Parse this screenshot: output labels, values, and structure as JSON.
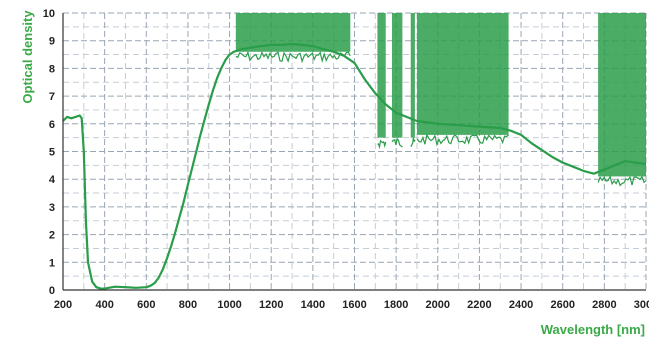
{
  "chart_data": {
    "type": "line",
    "xlabel": "Wavelength [nm]",
    "ylabel": "Optical density",
    "xlim": [
      200,
      3000
    ],
    "ylim": [
      0,
      10
    ],
    "x_ticks": [
      200,
      400,
      600,
      800,
      1000,
      1200,
      1400,
      1600,
      1800,
      2000,
      2200,
      2400,
      2600,
      2800,
      3000
    ],
    "x_tick_labels": [
      "200",
      "400",
      "600",
      "800",
      "1000",
      "1200",
      "1400",
      "1600",
      "1800",
      "2000",
      "2200",
      "2400",
      "2600",
      "2800",
      "3000"
    ],
    "y_ticks": [
      0,
      1,
      2,
      3,
      4,
      5,
      6,
      7,
      8,
      9,
      10
    ],
    "y_tick_labels": [
      "0",
      "1",
      "2",
      "3",
      "4",
      "5",
      "6",
      "7",
      "8",
      "9",
      "10"
    ],
    "grid": true,
    "colors": {
      "series": "#2a9d4a",
      "axis_title": "#3aaa48",
      "grid_major": "#9aa6b4",
      "grid_minor": "#c5cdd6",
      "tick_text": "#222222"
    },
    "series": [
      {
        "x": [
          200,
          220,
          240,
          260,
          280,
          290,
          300,
          310,
          320,
          340,
          360,
          380,
          400,
          450,
          500,
          550,
          600,
          620,
          640,
          660,
          680,
          700,
          720,
          740,
          760,
          780,
          800,
          820,
          840,
          860,
          880,
          900,
          920,
          940,
          960,
          980,
          1000,
          1020,
          1040,
          1060,
          1080,
          1100,
          1150,
          1200,
          1250,
          1300,
          1350,
          1400,
          1450,
          1500,
          1550,
          1600,
          1650,
          1700,
          1750,
          1800,
          1850,
          1900,
          1950,
          2000,
          2100,
          2200,
          2300,
          2350,
          2400,
          2450,
          2500,
          2550,
          2600,
          2650,
          2700,
          2750,
          2800,
          2850,
          2900,
          2950,
          3000
        ],
        "y": [
          6.1,
          6.25,
          6.2,
          6.25,
          6.3,
          6.2,
          5.0,
          2.5,
          1.0,
          0.3,
          0.1,
          0.05,
          0.05,
          0.12,
          0.1,
          0.08,
          0.1,
          0.15,
          0.25,
          0.45,
          0.75,
          1.15,
          1.6,
          2.1,
          2.65,
          3.2,
          3.8,
          4.4,
          5.0,
          5.6,
          6.15,
          6.7,
          7.2,
          7.65,
          8.0,
          8.3,
          8.5,
          8.6,
          8.65,
          8.7,
          8.72,
          8.75,
          8.8,
          8.85,
          8.85,
          8.88,
          8.85,
          8.8,
          8.7,
          8.6,
          8.45,
          8.2,
          7.6,
          7.1,
          6.7,
          6.4,
          6.25,
          6.1,
          6.05,
          6.0,
          5.95,
          5.9,
          5.85,
          5.75,
          5.6,
          5.3,
          5.05,
          4.8,
          4.6,
          4.45,
          4.3,
          4.2,
          4.35,
          4.5,
          4.65,
          4.6,
          4.55
        ]
      }
    ],
    "noise_bands": [
      {
        "x": [
          1030,
          1580
        ],
        "y": [
          8.6,
          10.0
        ]
      },
      {
        "x": [
          1710,
          1750
        ],
        "y": [
          5.5,
          10.0
        ]
      },
      {
        "x": [
          1780,
          1830
        ],
        "y": [
          5.5,
          10.0
        ]
      },
      {
        "x": [
          1870,
          1890
        ],
        "y": [
          5.5,
          10.0
        ]
      },
      {
        "x": [
          1900,
          2340
        ],
        "y": [
          5.6,
          10.0
        ]
      },
      {
        "x": [
          2770,
          3000
        ],
        "y": [
          4.1,
          10.0
        ]
      }
    ]
  }
}
